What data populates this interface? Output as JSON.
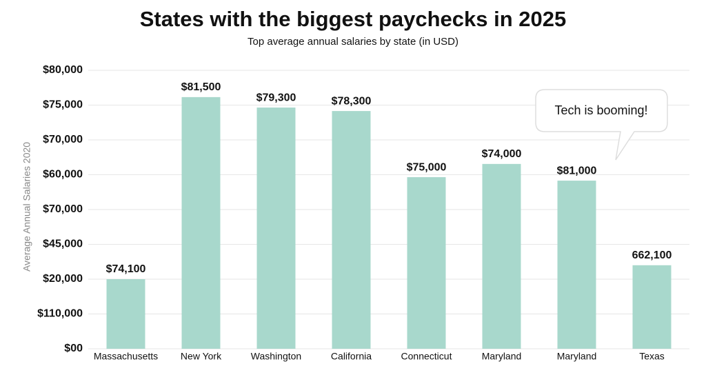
{
  "chart_data": {
    "type": "bar",
    "title": "States with the biggest paychecks in 2025",
    "subtitle": "Top average annual salaries by state (in USD)",
    "y_label": "Average Annual Salaries 2020",
    "annotation": "Tech is booming!",
    "categories": [
      "Massachusetts",
      "New York",
      "Washington",
      "California",
      "Connecticut",
      "Maryland",
      "Maryland",
      "Texas"
    ],
    "values": [
      2.0,
      7.23,
      6.93,
      6.83,
      4.93,
      5.31,
      4.83,
      2.4
    ],
    "bar_labels": [
      "$74,100",
      "$81,500",
      "$79,300",
      "$78,300",
      "$75,000",
      "$74,000",
      "$81,000",
      "662,100"
    ],
    "color": "#a8d8cc",
    "ylim": [
      0,
      8
    ],
    "yticks": [
      {
        "value": 0,
        "label": "$00"
      },
      {
        "value": 1,
        "label": "$110,000"
      },
      {
        "value": 2,
        "label": "$20,000"
      },
      {
        "value": 3,
        "label": "$45,000"
      },
      {
        "value": 4,
        "label": "$70,000"
      },
      {
        "value": 5,
        "label": "$60,000"
      },
      {
        "value": 6,
        "label": "$70,000"
      },
      {
        "value": 7,
        "label": "$75,000"
      },
      {
        "value": 8,
        "label": "$80,000"
      }
    ],
    "grid": true
  }
}
